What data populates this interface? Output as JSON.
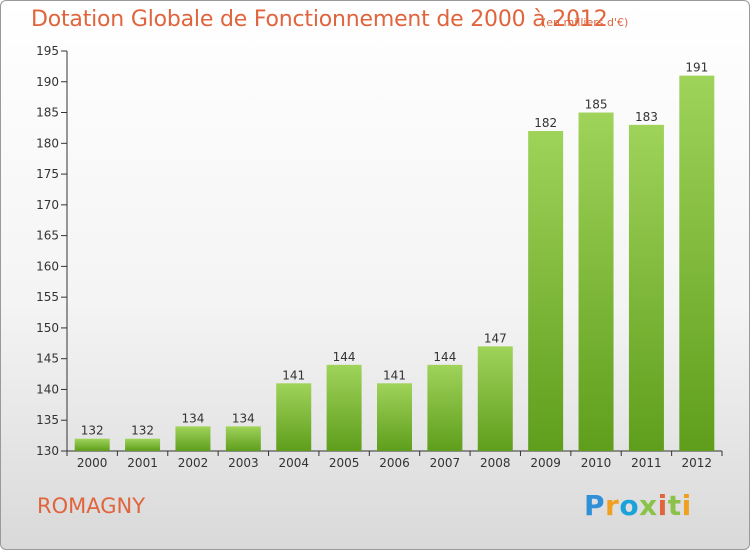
{
  "header": {
    "title": "Dotation Globale de Fonctionnement de 2000 à 2012",
    "unit": "(en milliers d'€)"
  },
  "footer": {
    "commune": "ROMAGNY",
    "logo_parts": [
      "P",
      "r",
      "o",
      "x",
      "i",
      "t",
      "i"
    ]
  },
  "colors": {
    "title": "#e0643c",
    "bar_top": "#9fd35a",
    "bar_bottom": "#5f9e1c"
  },
  "chart_data": {
    "type": "bar",
    "title": "Dotation Globale de Fonctionnement de 2000 à 2012",
    "subtitle": "(en milliers d'€)",
    "categories": [
      "2000",
      "2001",
      "2002",
      "2003",
      "2004",
      "2005",
      "2006",
      "2007",
      "2008",
      "2009",
      "2010",
      "2011",
      "2012"
    ],
    "values": [
      132,
      132,
      134,
      134,
      141,
      144,
      141,
      144,
      147,
      182,
      185,
      183,
      191
    ],
    "xlabel": "",
    "ylabel": "",
    "ylim": [
      130,
      195
    ],
    "yticks": [
      130,
      135,
      140,
      145,
      150,
      155,
      160,
      165,
      170,
      175,
      180,
      185,
      190,
      195
    ],
    "grid": false,
    "legend": "none"
  }
}
